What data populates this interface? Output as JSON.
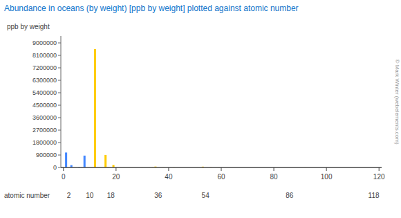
{
  "chart_data": {
    "type": "bar",
    "title": "Abundance in oceans (by weight) [ppb by weight] plotted against atomic number",
    "x_label": "atomic number",
    "y_label": "ppb by weight",
    "x": [
      1,
      8,
      11,
      12,
      17,
      19,
      20,
      16,
      6,
      7,
      5,
      14,
      13,
      38,
      35,
      56,
      3,
      80,
      53,
      37,
      55,
      4,
      24,
      33,
      22,
      23,
      30,
      28,
      29,
      26,
      27,
      25,
      42,
      74,
      79,
      47,
      46,
      78,
      92,
      82,
      83,
      50,
      51,
      40,
      41,
      44,
      45,
      52,
      34,
      31,
      32,
      49,
      81,
      48,
      57,
      58,
      90,
      91,
      60,
      63,
      66,
      67,
      68,
      70,
      71,
      59,
      62,
      64,
      65,
      69,
      72,
      73,
      75,
      76,
      77,
      84,
      85,
      86,
      88,
      89,
      54,
      36,
      18,
      10,
      2
    ],
    "values": [
      1080000,
      857000,
      10800,
      8550000,
      19400,
      180000,
      400,
      905000,
      28000,
      15000,
      4450,
      2200,
      1,
      8000,
      67300,
      13000,
      170000,
      30,
      60000,
      120,
      0.3,
      6000,
      200,
      3700,
      1000,
      2500,
      4900,
      480,
      250,
      2000,
      0.02,
      2000,
      10000,
      0.1,
      0.013,
      0.04,
      0.0003,
      0.0003,
      3300,
      30,
      20,
      400,
      2400,
      26,
      15,
      0.1,
      0.007,
      0.001,
      20000,
      30,
      0.05,
      10,
      12,
      100,
      12,
      1200,
      0.001,
      5e-05,
      28,
      1,
      0.9,
      0.22,
      0.87,
      0.52,
      0.15,
      6400,
      0.45,
      0.7,
      0.14,
      0.13,
      0.008,
      0.002,
      0.0004,
      0.0003,
      0.0003,
      1.5e-08,
      6e-07,
      6e-07,
      1e-07,
      1e-08,
      0.05,
      0.7,
      450,
      0.0001,
      0.0072
    ],
    "colors": [
      "#4488ff",
      "#4488ff",
      "#ffcc00",
      "#ffcc00",
      "#ffcc00",
      "#ffcc00",
      "#ffcc00",
      "#ffcc00",
      "#4488ff",
      "#4488ff",
      "#4488ff",
      "#ffcc00",
      "#ffcc00",
      "#ffcc00",
      "#ffcc00",
      "#ffcc00",
      "#4488ff",
      "#ffcc00",
      "#ffcc00",
      "#ffcc00",
      "#ffcc00",
      "#4488ff",
      "#ffcc00",
      "#ffcc00",
      "#ffcc00",
      "#ffcc00",
      "#ffcc00",
      "#ffcc00",
      "#ffcc00",
      "#ffcc00",
      "#ffcc00",
      "#ffcc00",
      "#ffcc00",
      "#ffcc00",
      "#ffcc00",
      "#ffcc00",
      "#ffcc00",
      "#ffcc00",
      "#ffcc00",
      "#ffcc00",
      "#ffcc00",
      "#ffcc00",
      "#ffcc00",
      "#ffcc00",
      "#ffcc00",
      "#ffcc00",
      "#ffcc00",
      "#ffcc00",
      "#ffcc00",
      "#ffcc00",
      "#ffcc00",
      "#ffcc00",
      "#ffcc00",
      "#ffcc00",
      "#ffcc00",
      "#ffcc00",
      "#ffcc00",
      "#ffcc00",
      "#ffcc00",
      "#ffcc00",
      "#ffcc00",
      "#ffcc00",
      "#ffcc00",
      "#ffcc00",
      "#ffcc00",
      "#ffcc00",
      "#ffcc00",
      "#ffcc00",
      "#ffcc00",
      "#ffcc00",
      "#ffcc00",
      "#ffcc00",
      "#ffcc00",
      "#ffcc00",
      "#ffcc00",
      "#ffcc00",
      "#ffcc00",
      "#ffcc00",
      "#ffcc00",
      "#ffcc00",
      "#4488ff",
      "#4488ff",
      "#4488ff",
      "#4488ff",
      "#4488ff"
    ],
    "xlim": [
      -1,
      121
    ],
    "xticks": [
      0,
      20,
      40,
      60,
      80,
      100,
      120
    ],
    "ylim": [
      0,
      9500000
    ],
    "yticks": [
      0,
      900000,
      1800000,
      2700000,
      3600000,
      4500000,
      5400000,
      6300000,
      7200000,
      8100000,
      9000000
    ],
    "grid": false,
    "annotations": [
      {
        "text": "2",
        "x": 2
      },
      {
        "text": "10",
        "x": 10
      },
      {
        "text": "18",
        "x": 18
      },
      {
        "text": "36",
        "x": 36
      },
      {
        "text": "54",
        "x": 54
      },
      {
        "text": "86",
        "x": 86
      },
      {
        "text": "118",
        "x": 118
      },
      {
        "text": "© Mark Winter (webelements.com)"
      }
    ]
  }
}
